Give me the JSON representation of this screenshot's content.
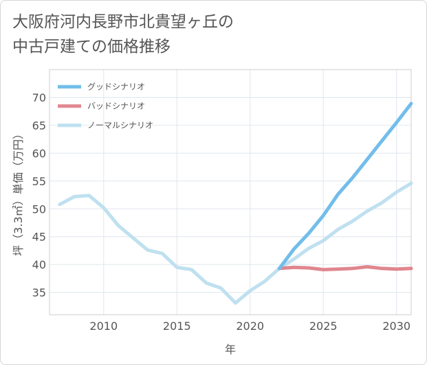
{
  "chart_data": {
    "type": "line",
    "title_lines": [
      "大阪府河内長野市北貴望ヶ丘の",
      "中古戸建ての価格推移"
    ],
    "xlabel": "年",
    "ylabel": "坪（3.3㎡）単価（万円）",
    "xlim": [
      2006.3,
      2031
    ],
    "ylim": [
      31,
      75
    ],
    "xticks": [
      2010,
      2015,
      2020,
      2025,
      2030
    ],
    "yticks": [
      35,
      40,
      45,
      50,
      55,
      60,
      65,
      70
    ],
    "grid": true,
    "legend_position": "top-left",
    "colors": {
      "good": "#72bdea",
      "bad": "#e0868f",
      "normal": "#bfe0ef",
      "grid": "#dfe6ee",
      "frame": "#cccccc"
    },
    "series": [
      {
        "key": "good",
        "name": "グッドシナリオ",
        "x": [
          2022,
          2023,
          2024,
          2025,
          2026,
          2027,
          2028,
          2029,
          2030,
          2031
        ],
        "y": [
          39.3,
          42.8,
          45.6,
          48.8,
          52.6,
          55.6,
          58.9,
          62.2,
          65.5,
          68.9
        ]
      },
      {
        "key": "bad",
        "name": "バッドシナリオ",
        "x": [
          2022,
          2023,
          2024,
          2025,
          2026,
          2027,
          2028,
          2029,
          2030,
          2031
        ],
        "y": [
          39.3,
          39.5,
          39.4,
          39.1,
          39.2,
          39.3,
          39.6,
          39.3,
          39.2,
          39.3
        ]
      },
      {
        "key": "normal",
        "name": "ノーマルシナリオ",
        "x": [
          2007,
          2008,
          2009,
          2010,
          2011,
          2012,
          2013,
          2014,
          2015,
          2016,
          2017,
          2018,
          2019,
          2020,
          2021,
          2022,
          2023,
          2024,
          2025,
          2026,
          2027,
          2028,
          2029,
          2030,
          2031
        ],
        "y": [
          50.8,
          52.2,
          52.4,
          50.2,
          47.0,
          44.8,
          42.6,
          42.0,
          39.5,
          39.1,
          36.7,
          35.8,
          33.1,
          35.3,
          37.0,
          39.3,
          41.0,
          42.9,
          44.3,
          46.3,
          47.8,
          49.6,
          51.1,
          53.0,
          54.6
        ]
      }
    ]
  }
}
